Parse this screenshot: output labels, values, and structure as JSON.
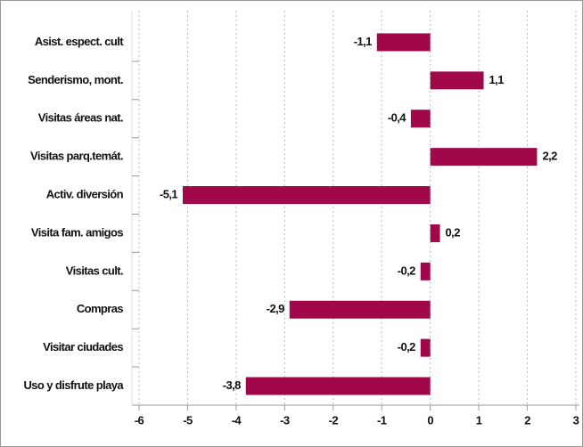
{
  "chart_data": {
    "type": "hbar",
    "categories": [
      "Asist. espect. cult",
      "Senderismo, mont.",
      "Visitas áreas nat.",
      "Visitas parq.temát.",
      "Activ. diversión",
      "Visita fam. amigos",
      "Visitas cult.",
      "Compras",
      "Visitar ciudades",
      "Uso y disfrute playa"
    ],
    "values": [
      -1.1,
      1.1,
      -0.4,
      2.2,
      -5.1,
      0.2,
      -0.2,
      -2.9,
      -0.2,
      -3.8
    ],
    "value_labels": [
      "-1,1",
      "1,1",
      "-0,4",
      "2,2",
      "-5,1",
      "0,2",
      "-0,2",
      "-2,9",
      "-0,2",
      "-3,8"
    ],
    "color": "#a0084a",
    "xlim": [
      -6,
      3
    ],
    "xticks": [
      -6,
      -5,
      -4,
      -3,
      -2,
      -1,
      0,
      1,
      2,
      3
    ],
    "grid": true
  }
}
